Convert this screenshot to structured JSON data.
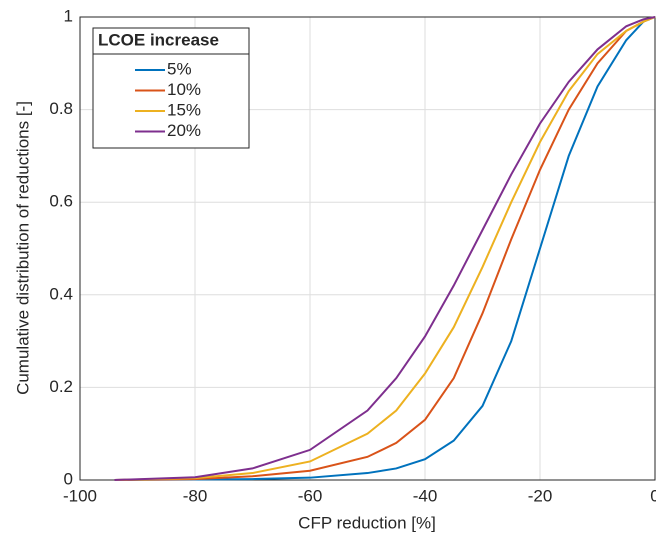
{
  "chart_data": {
    "type": "line",
    "x_label": "CFP reduction [%]",
    "y_label": "Cumulative distribution of reductions [-]",
    "legend_title": "LCOE increase",
    "legend": "top-left",
    "grid": true,
    "xlim": [
      -100,
      0
    ],
    "xticks": [
      -100,
      -80,
      -60,
      -40,
      -20,
      0
    ],
    "ylim": [
      0,
      1
    ],
    "yticks": [
      0,
      0.2,
      0.4,
      0.6,
      0.8,
      1
    ],
    "x": [
      -94,
      -80,
      -70,
      -60,
      -50,
      -45,
      -40,
      -35,
      -30,
      -25,
      -20,
      -15,
      -10,
      -5,
      -2,
      0
    ],
    "series": [
      {
        "name": "5%",
        "color": "#0072bd",
        "values": [
          0,
          0.001,
          0.002,
          0.005,
          0.015,
          0.025,
          0.045,
          0.085,
          0.16,
          0.3,
          0.5,
          0.7,
          0.85,
          0.95,
          0.99,
          1
        ]
      },
      {
        "name": "10%",
        "color": "#d95319",
        "values": [
          0,
          0.002,
          0.008,
          0.02,
          0.05,
          0.08,
          0.13,
          0.22,
          0.36,
          0.52,
          0.67,
          0.8,
          0.9,
          0.97,
          0.99,
          1
        ]
      },
      {
        "name": "15%",
        "color": "#edb120",
        "values": [
          0,
          0.004,
          0.015,
          0.04,
          0.1,
          0.15,
          0.23,
          0.33,
          0.46,
          0.6,
          0.73,
          0.84,
          0.92,
          0.97,
          0.99,
          1
        ]
      },
      {
        "name": "20%",
        "color": "#7e2f8e",
        "values": [
          0,
          0.006,
          0.025,
          0.065,
          0.15,
          0.22,
          0.31,
          0.42,
          0.54,
          0.66,
          0.77,
          0.86,
          0.93,
          0.98,
          0.995,
          1
        ]
      }
    ]
  }
}
